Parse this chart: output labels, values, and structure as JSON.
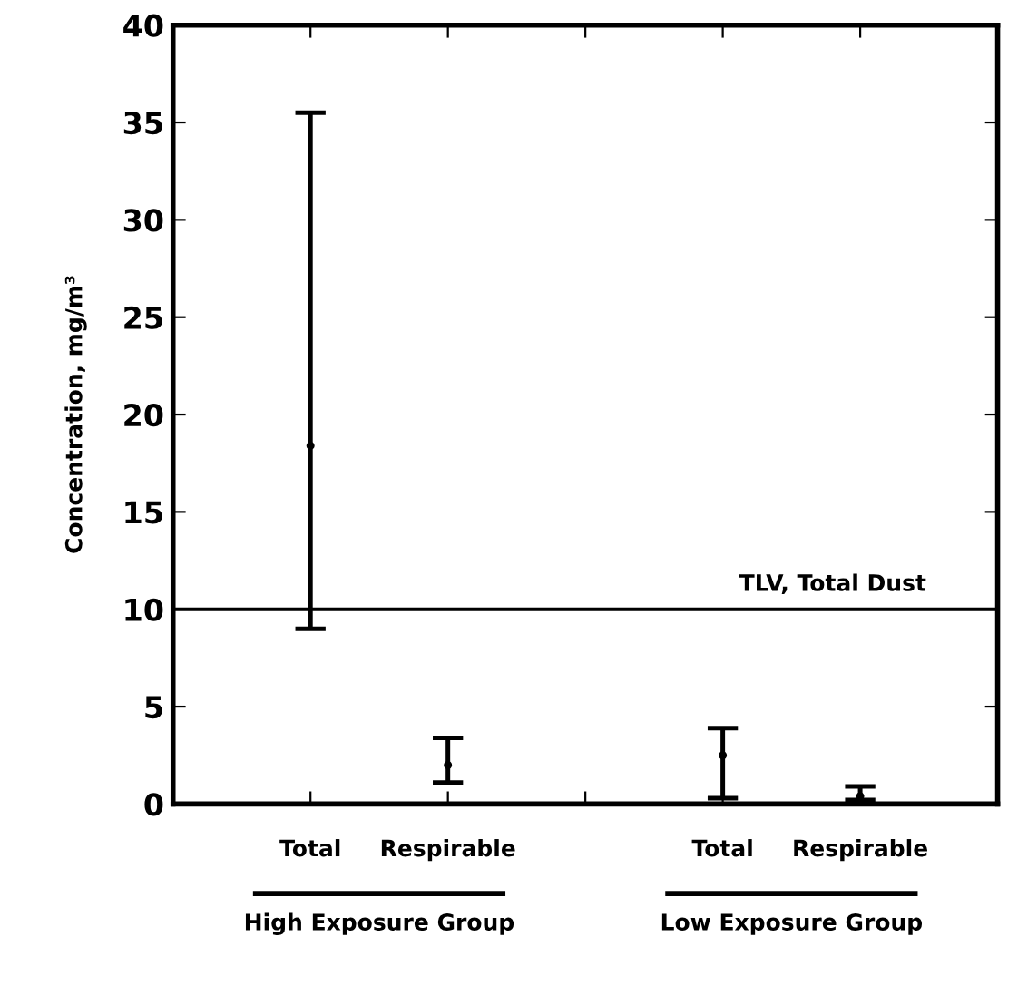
{
  "chart_data": {
    "type": "scatter",
    "ylabel": "Concentration, mg/m³",
    "categories": [
      "Total",
      "Respirable",
      null,
      "Total",
      "Respirable"
    ],
    "values": [
      18.4,
      2.0,
      null,
      2.5,
      0.4
    ],
    "errors": [
      [
        9.0,
        35.5
      ],
      [
        1.1,
        3.4
      ],
      null,
      [
        0.3,
        3.9
      ],
      [
        0.2,
        0.9
      ]
    ],
    "color": "#000000",
    "marker": "circle",
    "ylim": [
      0,
      40
    ],
    "yticks": [
      0,
      5,
      10,
      15,
      20,
      25,
      30,
      35,
      40
    ],
    "ref_lines": [
      {
        "axis": "y",
        "value": 10,
        "label": "TLV, Total Dust",
        "color": "#000000"
      }
    ],
    "annotations": [
      "High Exposure Group",
      "Low Exposure Group"
    ],
    "grid": false
  }
}
